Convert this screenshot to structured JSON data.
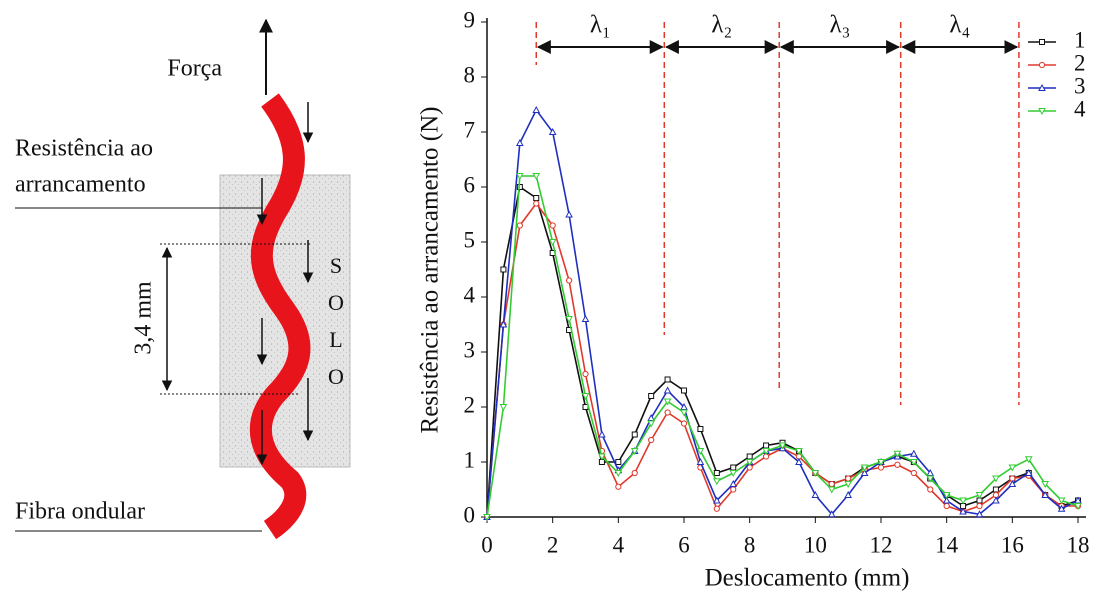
{
  "diagram": {
    "force": "Força",
    "resistance": [
      "Resistência ao",
      "arrancamento"
    ],
    "spacing": "3,4 mm",
    "soil": [
      "S",
      "O",
      "L",
      "O"
    ],
    "fiber": "Fibra ondular"
  },
  "chart_data": {
    "type": "line",
    "x_label": "Deslocamento (mm)",
    "y_label": "Resistência ao arrancamento (N)",
    "x": [
      0,
      0.5,
      1,
      1.5,
      2,
      2.5,
      3,
      3.5,
      4,
      4.5,
      5,
      5.5,
      6,
      6.5,
      7,
      7.5,
      8,
      8.5,
      9,
      9.5,
      10,
      10.5,
      11,
      11.5,
      12,
      12.5,
      13,
      13.5,
      14,
      14.5,
      15,
      15.5,
      16,
      16.5,
      17,
      17.5,
      18
    ],
    "series": [
      {
        "name": "1",
        "color": "#111111",
        "values": [
          0,
          4.5,
          6.0,
          5.8,
          4.8,
          3.4,
          2.0,
          1.0,
          1.0,
          1.5,
          2.2,
          2.5,
          2.3,
          1.6,
          0.8,
          0.9,
          1.1,
          1.3,
          1.35,
          1.2,
          0.8,
          0.6,
          0.7,
          0.9,
          1.0,
          1.1,
          1.0,
          0.7,
          0.4,
          0.2,
          0.3,
          0.5,
          0.7,
          0.8,
          0.4,
          0.2,
          0.3
        ]
      },
      {
        "name": "2",
        "color": "#e0392b",
        "values": [
          0,
          3.5,
          5.3,
          5.7,
          5.3,
          4.3,
          2.6,
          1.2,
          0.55,
          0.8,
          1.4,
          1.9,
          1.7,
          0.9,
          0.15,
          0.5,
          0.9,
          1.1,
          1.25,
          1.1,
          0.8,
          0.6,
          0.7,
          0.85,
          0.9,
          0.95,
          0.8,
          0.5,
          0.2,
          0.1,
          0.2,
          0.4,
          0.7,
          0.75,
          0.4,
          0.2,
          0.2
        ]
      },
      {
        "name": "3",
        "color": "#1f2fbf",
        "values": [
          0,
          3.5,
          6.8,
          7.4,
          7.0,
          5.5,
          3.6,
          1.5,
          0.85,
          1.2,
          1.8,
          2.3,
          2.0,
          1.0,
          0.3,
          0.6,
          1.0,
          1.2,
          1.25,
          1.0,
          0.4,
          0.05,
          0.4,
          0.8,
          1.0,
          1.1,
          1.15,
          0.8,
          0.3,
          0.1,
          0.05,
          0.3,
          0.6,
          0.8,
          0.4,
          0.15,
          0.3
        ]
      },
      {
        "name": "4",
        "color": "#33cc33",
        "values": [
          0,
          2.0,
          6.2,
          6.2,
          5.0,
          3.6,
          2.2,
          1.1,
          0.8,
          1.2,
          1.7,
          2.1,
          1.9,
          1.2,
          0.65,
          0.8,
          1.0,
          1.2,
          1.3,
          1.2,
          0.8,
          0.5,
          0.6,
          0.9,
          1.0,
          1.15,
          1.0,
          0.7,
          0.4,
          0.3,
          0.4,
          0.7,
          0.9,
          1.05,
          0.6,
          0.3,
          0.2
        ]
      }
    ],
    "xlim": [
      0,
      18
    ],
    "xticks": [
      0,
      2,
      4,
      6,
      8,
      10,
      12,
      14,
      16,
      18
    ],
    "ylim": [
      0,
      9
    ],
    "yticks": [
      0,
      1,
      2,
      3,
      4,
      5,
      6,
      7,
      8,
      9
    ],
    "grid": false,
    "legend": "upper right",
    "wavelengths": {
      "x": [
        1.5,
        5.4,
        8.9,
        12.6,
        16.2
      ],
      "labels": [
        "λ₁",
        "λ₂",
        "λ₃",
        "λ₄"
      ],
      "color": "#e0392b"
    }
  }
}
